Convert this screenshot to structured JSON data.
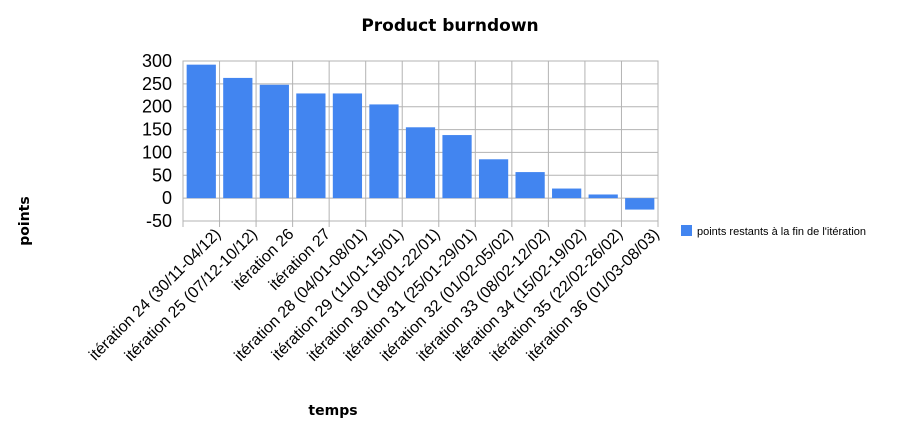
{
  "chart_data": {
    "type": "bar",
    "title": "Product burndown",
    "xlabel": "temps",
    "ylabel": "points",
    "ylim": [
      -50,
      300
    ],
    "yticks": [
      -50,
      0,
      50,
      100,
      150,
      200,
      250,
      300
    ],
    "grid": true,
    "legend_position": "right",
    "categories": [
      "itération 24 (30/11-04/12)",
      "itération 25 (07/12-10/12)",
      "itération 26",
      "itération 27",
      "itération 28 (04/01-08/01)",
      "itération 29 (11/01-15/01)",
      "itération 30 (18/01-22/01)",
      "itération 31 (25/01-29/01)",
      "itération 32 (01/02-05/02)",
      "itération 33 (08/02-12/02)",
      "itération 34 (15/02-19/02)",
      "itération 35 (22/02-26/02)",
      "itération 36 (01/03-08/03)"
    ],
    "series": [
      {
        "name": "points restants à la fin de l'itération",
        "color": "#4285f0",
        "values": [
          292,
          263,
          248,
          229,
          229,
          205,
          155,
          138,
          85,
          57,
          21,
          8,
          -25
        ]
      }
    ]
  }
}
